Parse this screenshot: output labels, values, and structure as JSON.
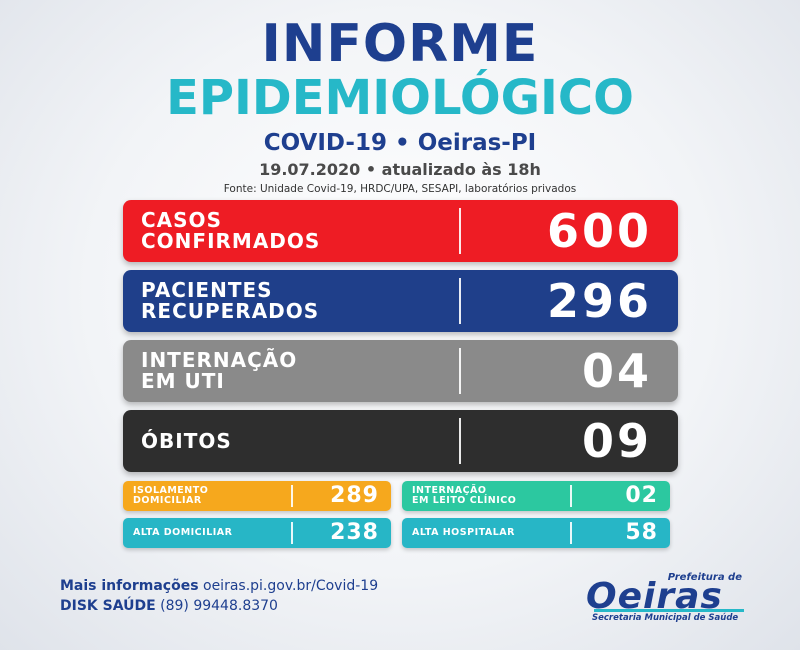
{
  "colors": {
    "navy": "#1e3f8f",
    "teal": "#26b8c8",
    "red": "#ee1c24",
    "blue": "#1f3f8a",
    "gray": "#8a8a8a",
    "dark": "#2e2e2e",
    "orange": "#f6a81d",
    "green": "#2cc8a0",
    "cyan": "#27b6c6"
  },
  "header": {
    "title_line1": "INFORME",
    "title_line2": "EPIDEMIOLÓGICO",
    "subtitle": "COVID-19 • Oeiras-PI",
    "date": "19.07.2020 • atualizado às 18h",
    "source": "Fonte: Unidade Covid-19, HRDC/UPA, SESAPI, laboratórios privados"
  },
  "main_stats": [
    {
      "label_line1": "CASOS",
      "label_line2": "CONFIRMADOS",
      "value": "600"
    },
    {
      "label_line1": "PACIENTES",
      "label_line2": "RECUPERADOS",
      "value": "296"
    },
    {
      "label_line1": "INTERNAÇÃO",
      "label_line2": "EM UTI",
      "value": "04"
    },
    {
      "label_line1": "ÓBITOS",
      "label_line2": "",
      "value": "09"
    }
  ],
  "secondary_stats": [
    {
      "label_line1": "ISOLAMENTO",
      "label_line2": "DOMICILIAR",
      "value": "289"
    },
    {
      "label_line1": "INTERNAÇÃO",
      "label_line2": "EM LEITO CLÍNICO",
      "value": "02"
    },
    {
      "label_line1": "ALTA DOMICILIAR",
      "label_line2": "",
      "value": "238"
    },
    {
      "label_line1": "ALTA HOSPITALAR",
      "label_line2": "",
      "value": "58"
    }
  ],
  "footer": {
    "info_label": "Mais informações",
    "info_url": "oeiras.pi.gov.br/Covid-19",
    "disk_label": "DISK SAÚDE",
    "disk_phone": "(89) 99448.8370"
  },
  "logo": {
    "top_text": "Prefeitura de",
    "main_text": "Oeiras",
    "bottom_text": "Secretaria Municipal de Saúde"
  }
}
